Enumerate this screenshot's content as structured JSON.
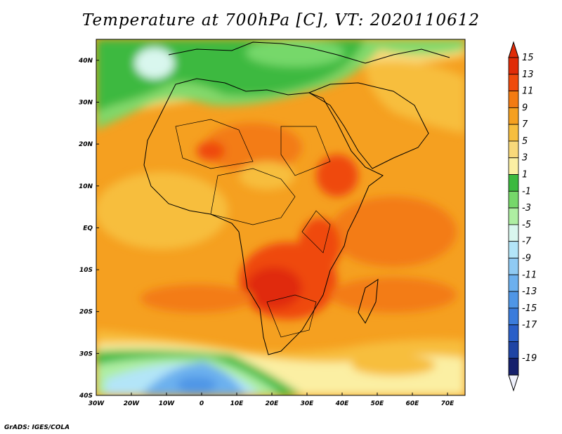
{
  "title": "Temperature at 700hPa [C], VT: 2020110612",
  "credit": "GrADS: IGES/COLA",
  "map": {
    "lon_range": [
      -30,
      75
    ],
    "lat_range": [
      -40,
      45
    ],
    "x_ticks": [
      "30W",
      "20W",
      "10W",
      "0",
      "10E",
      "20E",
      "30E",
      "40E",
      "50E",
      "60E",
      "70E"
    ],
    "y_ticks": [
      "40N",
      "30N",
      "20N",
      "10N",
      "EQ",
      "10S",
      "20S",
      "30S",
      "40S"
    ]
  },
  "colorbar": {
    "labels": [
      "15",
      "13",
      "11",
      "9",
      "7",
      "5",
      "3",
      "1",
      "-1",
      "-3",
      "-5",
      "-7",
      "-9",
      "-11",
      "-13",
      "-15",
      "-17",
      "-19"
    ],
    "colors": [
      "#e02b07",
      "#ef4a0c",
      "#f37b12",
      "#f5a020",
      "#f7be3e",
      "#f9d97a",
      "#fbefa3",
      "#3cb93f",
      "#76d86a",
      "#aeeea2",
      "#d9f7ee",
      "#b3e5f8",
      "#8fcaf3",
      "#6cb0ee",
      "#4f96e6",
      "#3b7cdc",
      "#2a5fc8",
      "#1f44a4",
      "#141f6c"
    ]
  }
}
